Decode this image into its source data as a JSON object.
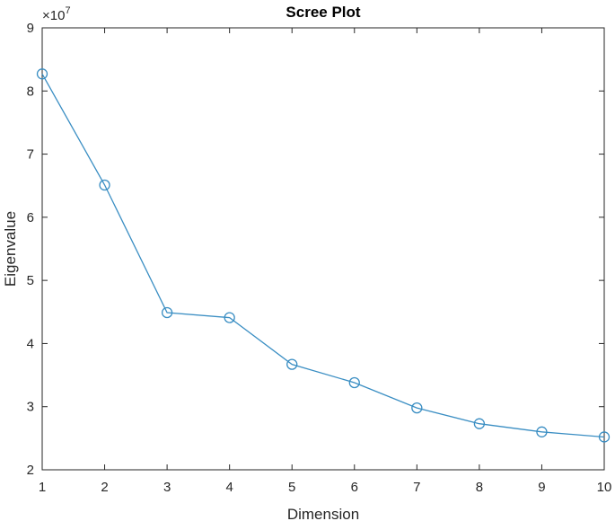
{
  "chart_data": {
    "type": "line",
    "title": "Scree Plot",
    "xlabel": "Dimension",
    "ylabel": "Eigenvalue",
    "y_exponent_base": "×10",
    "y_exponent_power": "7",
    "xlim": [
      1,
      10
    ],
    "ylim": [
      2,
      9
    ],
    "x_ticks": [
      1,
      2,
      3,
      4,
      5,
      6,
      7,
      8,
      9,
      10
    ],
    "y_ticks": [
      2,
      3,
      4,
      5,
      6,
      7,
      8,
      9
    ],
    "grid": false,
    "marker": "circle",
    "color": "#3a8ec3",
    "series": [
      {
        "x": [
          1,
          2,
          3,
          4,
          5,
          6,
          7,
          8,
          9,
          10
        ],
        "values": [
          8.27,
          6.51,
          4.49,
          4.41,
          3.67,
          3.38,
          2.98,
          2.73,
          2.6,
          2.52
        ]
      }
    ]
  }
}
